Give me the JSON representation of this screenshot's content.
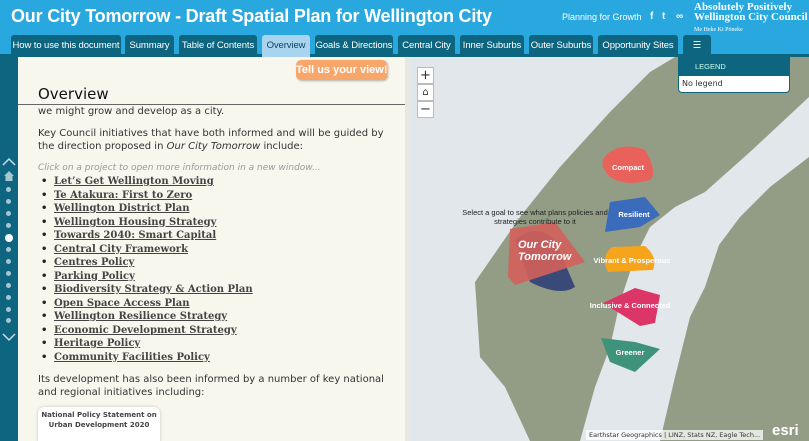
{
  "header": {
    "title": "Our City Tomorrow - Draft Spatial Plan for Wellington City",
    "planning_link": "Planning for Growth",
    "logo": {
      "line1": "Absolutely Positively",
      "line2": "Wellington City Council",
      "line3": "Me Heke Ki Pōneke"
    },
    "social": [
      "facebook-icon",
      "twitter-icon",
      "link-icon"
    ]
  },
  "tabs": [
    {
      "label": "How to use this document"
    },
    {
      "label": "Summary"
    },
    {
      "label": "Table of Contents"
    },
    {
      "label": "Overview",
      "active": true
    },
    {
      "label": "Goals & Directions"
    },
    {
      "label": "Central City"
    },
    {
      "label": "Inner Suburbs"
    },
    {
      "label": "Outer Suburbs"
    },
    {
      "label": "Opportunity Sites"
    },
    {
      "label": "☰"
    }
  ],
  "panel": {
    "feedback_button": "Tell us your view!",
    "title": "Overview",
    "para_top": "we might grow and develop as a city.",
    "para1_a": "Key Council initiatives that have both informed and will be guided by the direction proposed in ",
    "para1_em": "Our City Tomorrow",
    "para1_b": " include:",
    "hint": "Click on a project to open more information in a new window...",
    "projects": [
      "Let’s Get Wellington Moving",
      "Te Atakura: First to Zero",
      "Wellington District Plan",
      "Wellington Housing Strategy",
      "Towards 2040: Smart Capital",
      "Central City Framework",
      "Centres Policy",
      "Parking Policy",
      "Biodiversity Strategy & Action Plan",
      "Open Space Access Plan",
      "Wellington Resilience Strategy",
      "Economic Development Strategy",
      "Heritage Policy",
      "Community Facilities Policy"
    ],
    "para2": "Its development has also been informed by a number of key national and regional initiatives including:",
    "card": "National Policy Statement on Urban Development 2020"
  },
  "map": {
    "legend_title": "LEGEND",
    "legend_body": "No legend",
    "prompt": "Select a goal to see what plans policies and strategies contribute to it",
    "logo_text": "Our City Tomorrow",
    "goals": [
      {
        "label": "Compact",
        "color": "#e8615a"
      },
      {
        "label": "Resilient",
        "color": "#3b6cbb"
      },
      {
        "label": "Vibrant & Prosperous",
        "color": "#f6a41c"
      },
      {
        "label": "Inclusive & Connected",
        "color": "#dc3668"
      },
      {
        "label": "Greener",
        "color": "#3f937a"
      }
    ],
    "attribution": "Earthstar Geographics | LINZ, Stats NZ, Eagle Tech...",
    "powered_by": "esri"
  }
}
